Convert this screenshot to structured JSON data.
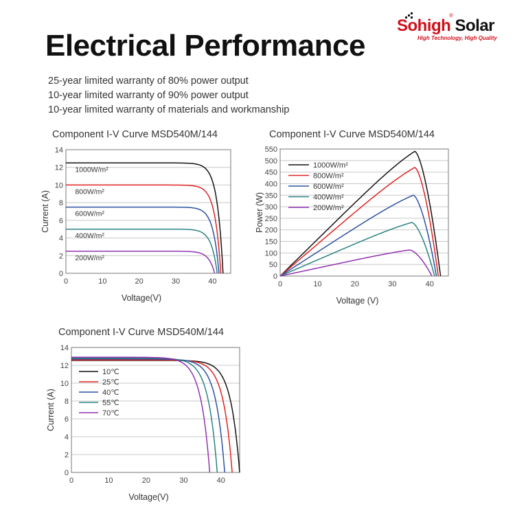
{
  "brand": {
    "name_red": "Sohigh",
    "name_black": " Solar",
    "tagline": "High Technology, High Quality",
    "registered": "®",
    "accent_color": "#d0101b"
  },
  "title": "Electrical Performance",
  "warranty": [
    "25-year limited warranty of 80% power output",
    "10-year limited warranty of 90% power output",
    "10-year limited warranty of materials and workmanship"
  ],
  "chart_data": [
    {
      "type": "line",
      "title": "Component I-V Curve MSD540M/144",
      "xlabel": "Voltage(V)",
      "ylabel": "Current (A)",
      "xlim": [
        0,
        45
      ],
      "ylim": [
        0,
        14
      ],
      "xticks": [
        0,
        10,
        20,
        30,
        40
      ],
      "yticks": [
        0,
        2,
        4,
        6,
        8,
        10,
        12,
        14
      ],
      "grid": true,
      "legend": "inline-labels",
      "series": [
        {
          "name": "1000W/m²",
          "color": "#111111",
          "isc": 12.5,
          "voc": 42.9
        },
        {
          "name": "800W/m²",
          "color": "#e02020",
          "isc": 10.0,
          "voc": 42.3
        },
        {
          "name": "600W/m²",
          "color": "#2a50a0",
          "isc": 7.5,
          "voc": 41.8
        },
        {
          "name": "400W/m²",
          "color": "#2a8080",
          "isc": 5.0,
          "voc": 41.3
        },
        {
          "name": "200W/m²",
          "color": "#9030b0",
          "isc": 2.5,
          "voc": 40.6
        }
      ]
    },
    {
      "type": "line",
      "title": "Component I-V Curve MSD540M/144",
      "xlabel": "Voltage (V)",
      "ylabel": "Power (W)",
      "xlim": [
        0,
        45
      ],
      "ylim": [
        0,
        550
      ],
      "xticks": [
        0,
        10,
        20,
        30,
        40
      ],
      "yticks": [
        0,
        50,
        100,
        150,
        200,
        250,
        300,
        350,
        400,
        450,
        500,
        550
      ],
      "grid": true,
      "legend": "top-left",
      "series": [
        {
          "name": "1000W/m²",
          "color": "#111111",
          "pmax": 540,
          "vmp": 36.0,
          "voc": 42.9
        },
        {
          "name": "800W/m²",
          "color": "#e02020",
          "pmax": 470,
          "vmp": 36.0,
          "voc": 42.3
        },
        {
          "name": "600W/m²",
          "color": "#2a50a0",
          "pmax": 350,
          "vmp": 35.6,
          "voc": 41.8
        },
        {
          "name": "400W/m²",
          "color": "#2a8080",
          "pmax": 232,
          "vmp": 35.2,
          "voc": 41.3
        },
        {
          "name": "200W/m²",
          "color": "#9030b0",
          "pmax": 113,
          "vmp": 34.6,
          "voc": 40.6
        }
      ]
    },
    {
      "type": "line",
      "title": "Component I-V Curve MSD540M/144",
      "xlabel": "Voltage(V)",
      "ylabel": "Current (A)",
      "xlim": [
        0,
        45
      ],
      "ylim": [
        0,
        14
      ],
      "xticks": [
        0,
        10,
        20,
        30,
        40
      ],
      "yticks": [
        0,
        2,
        4,
        6,
        8,
        10,
        12,
        14
      ],
      "grid": true,
      "legend": "top-left",
      "series": [
        {
          "name": "10℃",
          "color": "#111111",
          "isc": 12.55,
          "voc": 45.0
        },
        {
          "name": "25℃",
          "color": "#e02020",
          "isc": 12.6,
          "voc": 43.0
        },
        {
          "name": "40℃",
          "color": "#2a50a0",
          "isc": 12.7,
          "voc": 41.0
        },
        {
          "name": "55℃",
          "color": "#2a8080",
          "isc": 12.8,
          "voc": 39.0
        },
        {
          "name": "70℃",
          "color": "#9030b0",
          "isc": 12.9,
          "voc": 37.0
        }
      ]
    }
  ]
}
